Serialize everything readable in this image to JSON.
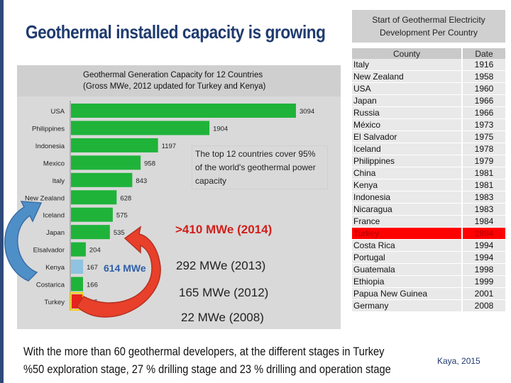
{
  "slide": {
    "title": "Geothermal installed capacity is growing",
    "footer_line1": "With the more than 60 geothermal developers, at the different stages  in Turkey",
    "footer_line2": "%50  exploration stage, 27 % drilling stage and  23 %  drilling and operation stage",
    "source": "Kaya, 2015"
  },
  "chart_data": {
    "type": "bar",
    "orientation": "horizontal",
    "title": "Geothermal Generation Capacity for 12 Countries",
    "subtitle": "(Gross MWe,  2012 updated for Turkey and Kenya)",
    "categories": [
      "USA",
      "Philippines",
      "Indonesia",
      "Mexico",
      "Italy",
      "New Zealand",
      "Iceland",
      "Japan",
      "Elsalvador",
      "Kenya",
      "Costarica",
      "Turkey"
    ],
    "values": [
      3094,
      1904,
      1197,
      958,
      843,
      628,
      575,
      535,
      204,
      167,
      166,
      165
    ],
    "value_labels": [
      "3094",
      "1904",
      "1197",
      "958",
      "843",
      "628",
      "575",
      "535",
      "204",
      "167",
      "166",
      "165"
    ],
    "bar_colors": [
      "#1fb33a",
      "#1fb33a",
      "#1fb33a",
      "#1fb33a",
      "#1fb33a",
      "#1fb33a",
      "#1fb33a",
      "#1fb33a",
      "#1fb33a",
      "#8fc3e0",
      "#1fb33a",
      "#e8241a"
    ],
    "grid": false,
    "callout": "The top 12 countries cover 95% of the world's geothermal power capacity"
  },
  "annotations": {
    "kenya": "614  MWe",
    "turkey_2014": ">410   MWe (2014)",
    "turkey_2013": "292  MWe (2013)",
    "turkey_2012": "165 MWe (2012)",
    "turkey_2008": "22 MWe (2008)",
    "arrow_blue_color": "#4f8fc8",
    "arrow_red_color": "#e8402a"
  },
  "table": {
    "title_line1": "Start of Geothermal Electricity",
    "title_line2": "Development Per Country",
    "col_country": "County",
    "col_date": "Date",
    "highlight_color": "#ff0000",
    "rows": [
      {
        "country": "Italy",
        "date": "1916"
      },
      {
        "country": "New Zealand",
        "date": "1958"
      },
      {
        "country": "USA",
        "date": "1960"
      },
      {
        "country": "Japan",
        "date": "1966"
      },
      {
        "country": "Russia",
        "date": "1966"
      },
      {
        "country": "México",
        "date": "1973"
      },
      {
        "country": "El Salvador",
        "date": "1975"
      },
      {
        "country": "Iceland",
        "date": "1978"
      },
      {
        "country": "Philippines",
        "date": "1979"
      },
      {
        "country": "China",
        "date": "1981"
      },
      {
        "country": "Kenya",
        "date": "1981"
      },
      {
        "country": "Indonesia",
        "date": "1983"
      },
      {
        "country": "Nicaragua",
        "date": "1983"
      },
      {
        "country": "France",
        "date": "1984"
      },
      {
        "country": "Turkey",
        "date": "1984",
        "highlight": true
      },
      {
        "country": "Costa Rica",
        "date": "1994"
      },
      {
        "country": "Portugal",
        "date": "1994"
      },
      {
        "country": "Guatemala",
        "date": "1998"
      },
      {
        "country": "Ethiopia",
        "date": "1999"
      },
      {
        "country": "Papua New Guinea",
        "date": "2001"
      },
      {
        "country": "Germany",
        "date": "2008"
      }
    ]
  }
}
